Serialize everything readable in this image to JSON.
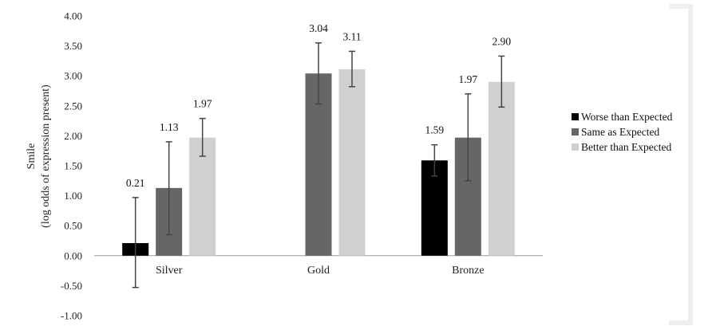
{
  "chart_data": {
    "type": "bar",
    "title": "",
    "xlabel": "",
    "ylabel": [
      "Smile",
      "(log odds of expression present)"
    ],
    "ylim": [
      -1.0,
      4.0
    ],
    "yticks": [
      "-1.00",
      "-0.50",
      "0.00",
      "0.50",
      "1.00",
      "1.50",
      "2.00",
      "2.50",
      "3.00",
      "3.50",
      "4.00"
    ],
    "categories": [
      "Silver",
      "Gold",
      "Bronze"
    ],
    "series": [
      {
        "name": "Worse than Expected",
        "color": "#000000",
        "values": [
          0.21,
          null,
          1.59
        ],
        "labels": [
          "0.21",
          "",
          "1.59"
        ],
        "err_low": [
          -0.53,
          null,
          1.33
        ],
        "err_high": [
          0.97,
          null,
          1.85
        ]
      },
      {
        "name": "Same as Expected",
        "color": "#666666",
        "values": [
          1.13,
          3.04,
          1.97
        ],
        "labels": [
          "1.13",
          "3.04",
          "1.97"
        ],
        "err_low": [
          0.35,
          2.53,
          1.25
        ],
        "err_high": [
          1.9,
          3.55,
          2.7
        ]
      },
      {
        "name": "Better than Expected",
        "color": "#d0d0d0",
        "values": [
          1.97,
          3.11,
          2.9
        ],
        "labels": [
          "1.97",
          "3.11",
          "2.90"
        ],
        "err_low": [
          1.66,
          2.82,
          2.48
        ],
        "err_high": [
          2.29,
          3.41,
          3.33
        ]
      }
    ],
    "legend": "right",
    "grid": false
  }
}
